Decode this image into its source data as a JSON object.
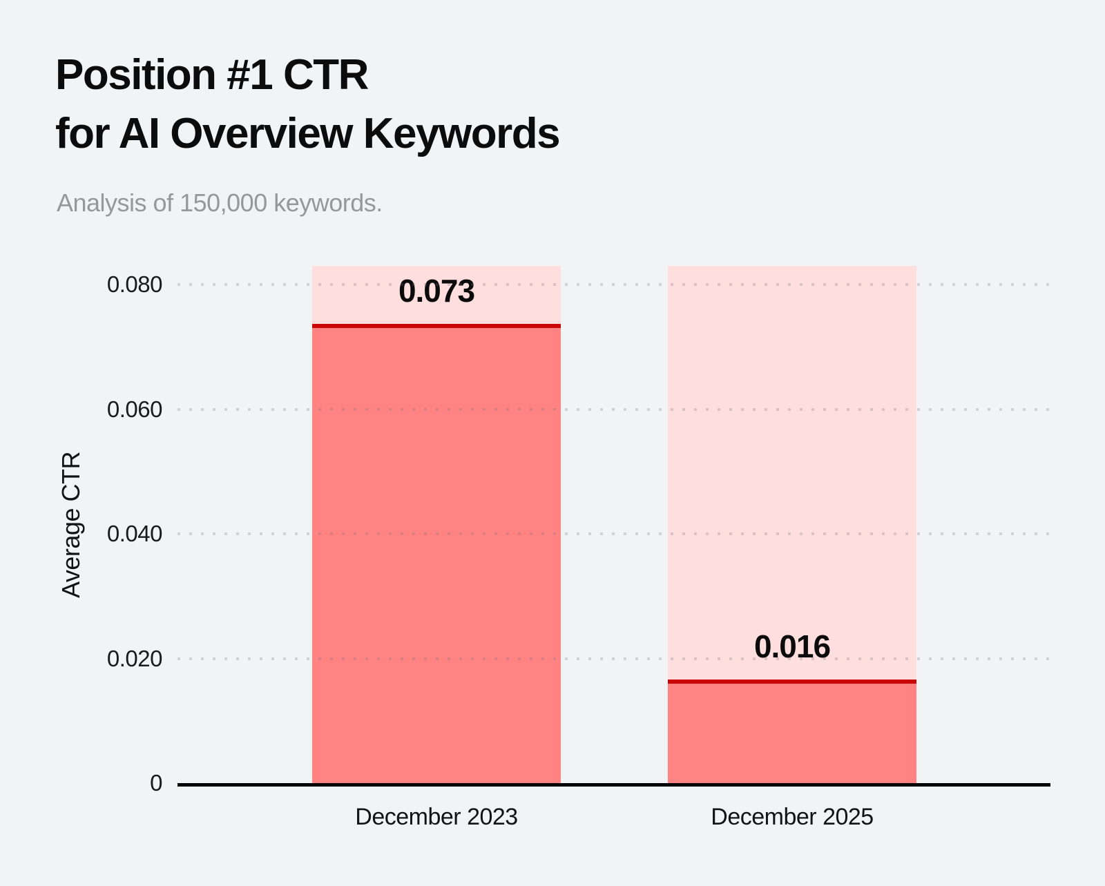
{
  "header": {
    "title_line1": "Position #1 CTR",
    "title_line2": "for AI Overview Keywords",
    "subtitle": "Analysis of 150,000 keywords."
  },
  "chart_data": {
    "type": "bar",
    "title": "Position #1 CTR for AI Overview Keywords",
    "subtitle": "Analysis of 150,000 keywords.",
    "categories": [
      "December 2023",
      "December 2025"
    ],
    "values": [
      0.073,
      0.016
    ],
    "value_labels": [
      "0.073",
      "0.016"
    ],
    "xlabel": "",
    "ylabel": "Average CTR",
    "ylim": [
      0,
      0.083
    ],
    "yticks": [
      0,
      0.02,
      0.04,
      0.06,
      0.08
    ],
    "ytick_labels": [
      "0",
      "0.020",
      "0.040",
      "0.060",
      "0.080"
    ],
    "grid": "horizontal-dotted",
    "legend": "none",
    "colors": {
      "background": "#f2f3f5",
      "bar_fill": "#ff8383",
      "bar_background": "#ffdede",
      "bar_top_line": "#c90707",
      "axis_line": "#050505",
      "grid_dot": "rgba(109,110,120,0.25)",
      "title_text": "#0c0c0c",
      "subtitle_text": "#97979b"
    }
  }
}
